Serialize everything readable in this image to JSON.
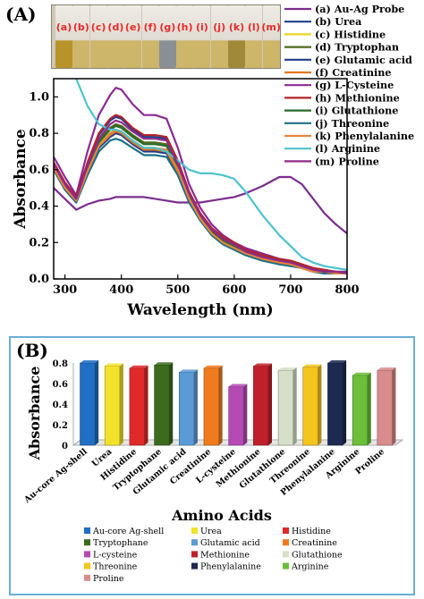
{
  "panel_a_label": "(A)",
  "panel_b_label": "(B)",
  "vials": [
    "(a)",
    "(b)",
    "(c)",
    "(d)",
    "(e)",
    "(f)",
    "(g)",
    "(h)",
    "(i)",
    "(j)",
    "(k)",
    "(l)",
    "(m)"
  ],
  "chart_data": [
    {
      "type": "line",
      "xlabel": "Wavelength (nm)",
      "ylabel": "Absorbance",
      "xlim": [
        280,
        800
      ],
      "ylim": [
        0.0,
        1.1
      ],
      "xticks": [
        300,
        400,
        500,
        600,
        700,
        800
      ],
      "yticks": [
        0.0,
        0.2,
        0.4,
        0.6,
        0.8,
        1.0
      ],
      "yticklabels": [
        "0.0",
        "0.2",
        "0.4",
        "0.6",
        "0.8",
        "1.0"
      ],
      "legend_position": "top-right, outside plot",
      "x": [
        280,
        300,
        320,
        340,
        360,
        380,
        390,
        400,
        420,
        440,
        460,
        480,
        500,
        520,
        540,
        560,
        580,
        600,
        620,
        650,
        680,
        700,
        720,
        740,
        760,
        780,
        800
      ],
      "series": [
        {
          "name": "(a) Au-Ag Probe",
          "color": "#7b2d8e",
          "values": [
            0.5,
            0.44,
            0.38,
            0.41,
            0.43,
            0.44,
            0.45,
            0.45,
            0.45,
            0.45,
            0.44,
            0.43,
            0.42,
            0.42,
            0.42,
            0.43,
            0.44,
            0.45,
            0.47,
            0.51,
            0.56,
            0.56,
            0.52,
            0.44,
            0.36,
            0.3,
            0.25
          ]
        },
        {
          "name": "(b) Urea",
          "color": "#1f3f8f",
          "values": [
            0.63,
            0.52,
            0.44,
            0.63,
            0.79,
            0.87,
            0.89,
            0.88,
            0.82,
            0.78,
            0.78,
            0.77,
            0.64,
            0.47,
            0.35,
            0.27,
            0.22,
            0.19,
            0.15,
            0.12,
            0.1,
            0.09,
            0.07,
            0.05,
            0.04,
            0.04,
            0.03
          ]
        },
        {
          "name": "(c) Histidine",
          "color": "#e8d528",
          "values": [
            0.61,
            0.5,
            0.43,
            0.6,
            0.74,
            0.8,
            0.82,
            0.81,
            0.76,
            0.72,
            0.72,
            0.71,
            0.6,
            0.44,
            0.33,
            0.25,
            0.2,
            0.17,
            0.14,
            0.11,
            0.09,
            0.08,
            0.06,
            0.04,
            0.04,
            0.03,
            0.03
          ]
        },
        {
          "name": "(d) Tryptophan",
          "color": "#4f6b1f",
          "values": [
            0.62,
            0.51,
            0.44,
            0.61,
            0.76,
            0.83,
            0.85,
            0.84,
            0.79,
            0.75,
            0.75,
            0.74,
            0.62,
            0.46,
            0.34,
            0.26,
            0.21,
            0.18,
            0.15,
            0.12,
            0.1,
            0.09,
            0.07,
            0.05,
            0.04,
            0.04,
            0.03
          ]
        },
        {
          "name": "(e) Glutamic acid",
          "color": "#243a8a",
          "values": [
            0.6,
            0.49,
            0.42,
            0.58,
            0.72,
            0.78,
            0.8,
            0.79,
            0.74,
            0.7,
            0.7,
            0.69,
            0.58,
            0.43,
            0.32,
            0.25,
            0.2,
            0.17,
            0.14,
            0.11,
            0.09,
            0.08,
            0.06,
            0.04,
            0.03,
            0.03,
            0.03
          ]
        },
        {
          "name": "(f) Creatinine",
          "color": "#e07a1e",
          "values": [
            0.61,
            0.5,
            0.42,
            0.59,
            0.73,
            0.79,
            0.81,
            0.8,
            0.75,
            0.71,
            0.71,
            0.7,
            0.59,
            0.44,
            0.33,
            0.25,
            0.2,
            0.17,
            0.14,
            0.11,
            0.09,
            0.08,
            0.06,
            0.04,
            0.04,
            0.03,
            0.03
          ]
        },
        {
          "name": "(g) L-Cysteine",
          "color": "#8a2a92",
          "values": [
            0.67,
            0.56,
            0.46,
            0.7,
            0.9,
            1.01,
            1.05,
            1.04,
            0.96,
            0.9,
            0.9,
            0.88,
            0.72,
            0.52,
            0.39,
            0.3,
            0.24,
            0.2,
            0.17,
            0.14,
            0.11,
            0.1,
            0.08,
            0.06,
            0.05,
            0.04,
            0.04
          ]
        },
        {
          "name": "(h) Methionine",
          "color": "#b5232a",
          "values": [
            0.64,
            0.53,
            0.45,
            0.64,
            0.8,
            0.88,
            0.9,
            0.89,
            0.83,
            0.79,
            0.79,
            0.78,
            0.65,
            0.48,
            0.36,
            0.28,
            0.23,
            0.2,
            0.16,
            0.13,
            0.11,
            0.1,
            0.08,
            0.06,
            0.05,
            0.04,
            0.03
          ]
        },
        {
          "name": "(i) Glutathione",
          "color": "#2a6a2a",
          "values": [
            0.62,
            0.51,
            0.43,
            0.6,
            0.75,
            0.82,
            0.84,
            0.83,
            0.78,
            0.74,
            0.74,
            0.73,
            0.61,
            0.45,
            0.34,
            0.26,
            0.21,
            0.18,
            0.15,
            0.12,
            0.1,
            0.09,
            0.07,
            0.05,
            0.04,
            0.03,
            0.03
          ]
        },
        {
          "name": "(j) Threonine",
          "color": "#1d6f86",
          "values": [
            0.6,
            0.49,
            0.42,
            0.57,
            0.7,
            0.76,
            0.77,
            0.76,
            0.72,
            0.68,
            0.68,
            0.67,
            0.57,
            0.42,
            0.32,
            0.24,
            0.19,
            0.16,
            0.13,
            0.1,
            0.08,
            0.07,
            0.06,
            0.04,
            0.03,
            0.03,
            0.03
          ]
        },
        {
          "name": "(k) Phenylalanine",
          "color": "#e8853a",
          "values": [
            0.61,
            0.5,
            0.43,
            0.59,
            0.73,
            0.8,
            0.82,
            0.81,
            0.76,
            0.72,
            0.72,
            0.71,
            0.6,
            0.44,
            0.33,
            0.25,
            0.2,
            0.17,
            0.14,
            0.11,
            0.09,
            0.08,
            0.06,
            0.04,
            0.04,
            0.03,
            0.03
          ]
        },
        {
          "name": "(l) Arginine",
          "color": "#4cc3cf",
          "values": [
            1.25,
            1.2,
            1.1,
            0.95,
            0.85,
            0.82,
            0.82,
            0.81,
            0.76,
            0.72,
            0.72,
            0.7,
            0.65,
            0.6,
            0.58,
            0.58,
            0.57,
            0.55,
            0.48,
            0.35,
            0.24,
            0.18,
            0.12,
            0.09,
            0.07,
            0.06,
            0.05
          ]
        },
        {
          "name": "(m) Proline",
          "color": "#8e2a8a",
          "values": [
            0.63,
            0.52,
            0.44,
            0.62,
            0.77,
            0.85,
            0.87,
            0.86,
            0.81,
            0.77,
            0.77,
            0.76,
            0.63,
            0.47,
            0.35,
            0.27,
            0.22,
            0.19,
            0.15,
            0.12,
            0.1,
            0.09,
            0.07,
            0.05,
            0.04,
            0.04,
            0.03
          ]
        }
      ]
    },
    {
      "type": "bar",
      "xlabel": "Amino Acids",
      "ylabel": "Absorbance",
      "ylim": [
        0,
        0.8
      ],
      "yticks": [
        0,
        0.2,
        0.4,
        0.6,
        0.8
      ],
      "yticklabels": [
        "0",
        "0.2",
        "0.4",
        "0.6",
        "0.8"
      ],
      "categories": [
        "Au-core Ag-shell",
        "Urea",
        "Histidine",
        "Tryptophane",
        "Glutamic acid",
        "Creatinine",
        "L-cysteine",
        "Methionine",
        "Glutathione",
        "Threonine",
        "Phenylalanine",
        "Arginine",
        "Proline"
      ],
      "values": [
        0.8,
        0.77,
        0.75,
        0.78,
        0.71,
        0.75,
        0.57,
        0.77,
        0.73,
        0.76,
        0.8,
        0.68,
        0.73
      ],
      "colors": [
        "#1f6fc4",
        "#f3e22a",
        "#e02a2a",
        "#3c6b1e",
        "#5b9bd5",
        "#f07b1e",
        "#b54ab5",
        "#c0202a",
        "#d6dfc8",
        "#f5c51e",
        "#1d2a52",
        "#6bbf3a",
        "#d98c8c"
      ],
      "legend": [
        "Au-core Ag-shell",
        "Urea",
        "Histidine",
        "Tryptophane",
        "Glutamic acid",
        "Creatinine",
        "L-cysteine",
        "Methionine",
        "Glutathione",
        "Threonine",
        "Phenylalanine",
        "Arginine",
        "Proline"
      ],
      "legend_position": "bottom"
    }
  ]
}
